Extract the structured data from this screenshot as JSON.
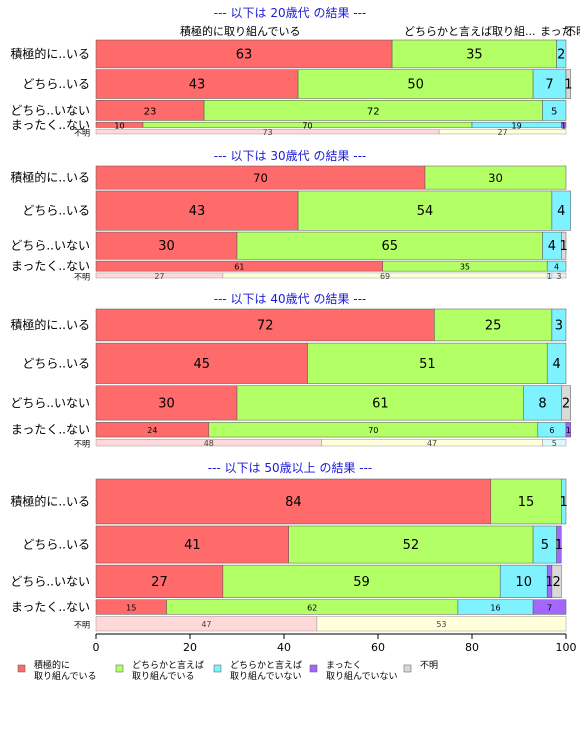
{
  "chart_data": {
    "type": "bar",
    "orientation": "horizontal-stacked",
    "xlim": [
      0,
      100
    ],
    "x_ticks": [
      "0",
      "20",
      "40",
      "60",
      "80",
      "100"
    ],
    "categories": [
      "積極的に..いる",
      "どちら..いる",
      "どちら..いない",
      "まったく..ない",
      "不明"
    ],
    "segment_names": [
      "積極的に取り組んでいる",
      "どちらかと言えば取り組んでいる",
      "どちらかと言えば取り組んでいない",
      "まったく取り組んでいない",
      "不明"
    ],
    "series_colors": [
      "#ff6b6b",
      "#b3ff66",
      "#7ff2ff",
      "#a366ff",
      "#d9d9d9"
    ],
    "top_labels": [
      "積極的に取り組んでいる",
      "どちらかと言えば取り組...",
      "まった...",
      "不明"
    ],
    "legend": [
      {
        "line1": "積極的に",
        "line2": "取り組んでいる",
        "color": "#ff6b6b"
      },
      {
        "line1": "どちらかと言えば",
        "line2": "取り組んでいる",
        "color": "#b3ff66"
      },
      {
        "line1": "どちらかと言えば",
        "line2": "取り組んでいない",
        "color": "#7ff2ff"
      },
      {
        "line1": "まったく",
        "line2": "取り組んでいない",
        "color": "#a366ff"
      },
      {
        "line1": "不明",
        "line2": "",
        "color": "#d9d9d9"
      }
    ],
    "unknown_row_colors": [
      "#ffd9d9",
      "#ffffd9",
      "#d9fbff",
      "#e6d9ff",
      "#eeeeee"
    ],
    "panels": [
      {
        "title": "--- 以下は 20歳代 の結果 ---",
        "weights": [
          2.9,
          3.0,
          2.1,
          0.55,
          0.5
        ],
        "rows": [
          [
            63,
            35,
            2,
            0,
            0
          ],
          [
            43,
            50,
            7,
            0,
            1
          ],
          [
            23,
            72,
            5,
            0,
            0
          ],
          [
            10,
            70,
            19,
            1,
            0
          ],
          [
            73,
            27,
            0,
            0,
            0
          ]
        ]
      },
      {
        "title": "--- 以下は 30歳代 の結果 ---",
        "weights": [
          2.3,
          3.9,
          2.7,
          1.0,
          0.5
        ],
        "rows": [
          [
            70,
            30,
            0,
            0,
            0
          ],
          [
            43,
            54,
            4,
            0,
            0
          ],
          [
            30,
            65,
            4,
            0,
            1
          ],
          [
            61,
            35,
            4,
            0,
            0
          ],
          [
            27,
            69,
            1,
            0,
            3
          ]
        ]
      },
      {
        "title": "--- 以下は 40歳代 の結果 ---",
        "weights": [
          2.6,
          3.3,
          2.8,
          1.2,
          0.55
        ],
        "rows": [
          [
            72,
            25,
            3,
            0,
            0
          ],
          [
            45,
            51,
            4,
            0,
            0
          ],
          [
            30,
            61,
            8,
            0,
            2
          ],
          [
            24,
            70,
            6,
            1,
            0
          ],
          [
            48,
            47,
            5,
            0,
            0
          ]
        ]
      },
      {
        "title": "--- 以下は 50歳以上 の結果 ---",
        "weights": [
          4.0,
          3.3,
          2.9,
          1.3,
          1.3
        ],
        "rows": [
          [
            84,
            15,
            1,
            0,
            0
          ],
          [
            41,
            52,
            5,
            1,
            0
          ],
          [
            27,
            59,
            10,
            1,
            2
          ],
          [
            15,
            62,
            16,
            7,
            0
          ],
          [
            47,
            53,
            0,
            0,
            0
          ]
        ]
      }
    ]
  }
}
